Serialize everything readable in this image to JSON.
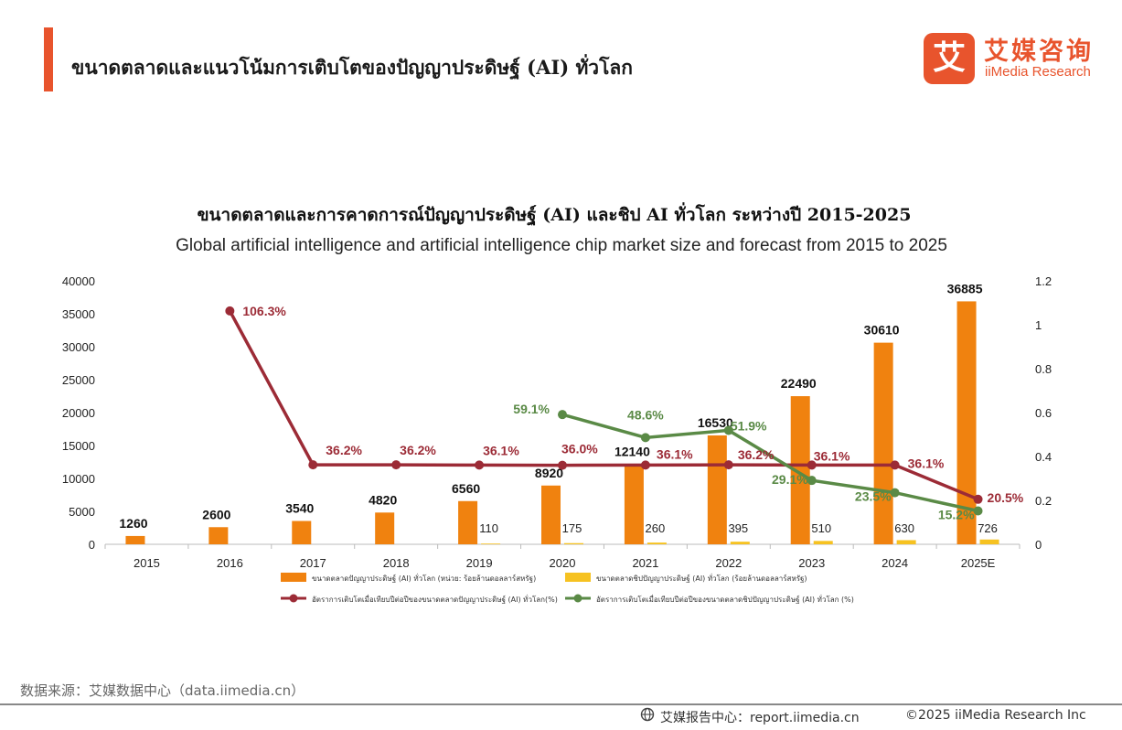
{
  "header": {
    "title": "ขนาดตลาดและแนวโน้มการเติบโตของปัญญาประดิษฐ์ (AI) ทั่วโลก",
    "logo_mark": "艾",
    "logo_cn": "艾媒咨询",
    "logo_en": "iiMedia Research"
  },
  "colors": {
    "accent": "#e8542d",
    "bar_ai": "#f0820f",
    "bar_chip": "#f6c221",
    "line_ai": "#9c2b36",
    "line_chip": "#5a8a46"
  },
  "chart_data": {
    "type": "bar",
    "title": "ขนาดตลาดและการคาดการณ์ปัญญาประดิษฐ์ (AI) และชิป AI ทั่วโลก ระหว่างปี 2015-2025",
    "subtitle": "Global artificial intelligence and artificial intelligence chip market size and forecast from 2015 to 2025",
    "categories": [
      "2015",
      "2016",
      "2017",
      "2018",
      "2019",
      "2020",
      "2021",
      "2022",
      "2023",
      "2024",
      "2025E"
    ],
    "y_left": {
      "min": 0,
      "max": 40000,
      "ticks": [
        "0",
        "5000",
        "10000",
        "15000",
        "20000",
        "25000",
        "30000",
        "35000",
        "40000"
      ]
    },
    "y_right": {
      "min": 0,
      "max": 1.2,
      "ticks": [
        "0",
        "0.2",
        "0.4",
        "0.6",
        "0.8",
        "1",
        "1.2"
      ]
    },
    "grid": false,
    "legend_position": "bottom",
    "series": [
      {
        "name": "ขนาดตลาดปัญญาประดิษฐ์ (AI) ทั่วโลก (หน่วย: ร้อยล้านดอลลาร์สหรัฐ)",
        "type": "bar",
        "axis": "left",
        "color": "#f0820f",
        "values": [
          1260,
          2600,
          3540,
          4820,
          6560,
          8920,
          12140,
          16530,
          22490,
          30610,
          36885
        ],
        "labels": [
          "1260",
          "2600",
          "3540",
          "4820",
          "6560",
          "8920",
          "12140",
          "16530",
          "22490",
          "30610",
          "36885"
        ]
      },
      {
        "name": "ขนาดตลาดชิปปัญญาประดิษฐ์ (AI) ทั่วโลก (ร้อยล้านดอลลาร์สหรัฐ)",
        "type": "bar",
        "axis": "left",
        "color": "#f6c221",
        "values": [
          null,
          null,
          null,
          null,
          110,
          175,
          260,
          395,
          510,
          630,
          726
        ],
        "labels": [
          "",
          "",
          "",
          "",
          "110",
          "175",
          "260",
          "395",
          "510",
          "630",
          "726"
        ]
      },
      {
        "name": "อัตราการเติบโตเมื่อเทียบปีต่อปีของขนาดตลาดปัญญาประดิษฐ์ (AI) ทั่วโลก(%)",
        "type": "line",
        "axis": "right",
        "color": "#9c2b36",
        "values": [
          null,
          1.063,
          0.362,
          0.362,
          0.361,
          0.36,
          0.361,
          0.362,
          0.361,
          0.361,
          0.205
        ],
        "labels": [
          "",
          "106.3%",
          "36.2%",
          "36.2%",
          "36.1%",
          "36.0%",
          "36.1%",
          "36.2%",
          "36.1%",
          "36.1%",
          "20.5%"
        ]
      },
      {
        "name": "อัตราการเติบโตเมื่อเทียบปีต่อปีของขนาดตลาดชิปปัญญาประดิษฐ์ (AI) ทั่วโลก (%)",
        "type": "line",
        "axis": "right",
        "color": "#5a8a46",
        "values": [
          null,
          null,
          null,
          null,
          null,
          0.591,
          0.486,
          0.519,
          0.291,
          0.235,
          0.152
        ],
        "labels": [
          "",
          "",
          "",
          "",
          "",
          "59.1%",
          "48.6%",
          "51.9%",
          "29.1%",
          "23.5%",
          "15.2%"
        ]
      }
    ]
  },
  "footer": {
    "source": "数据来源：艾媒数据中心（data.iimedia.cn）",
    "left": "艾媒报告中心：report.iimedia.cn",
    "right": "©2025  iiMedia Research  Inc"
  }
}
